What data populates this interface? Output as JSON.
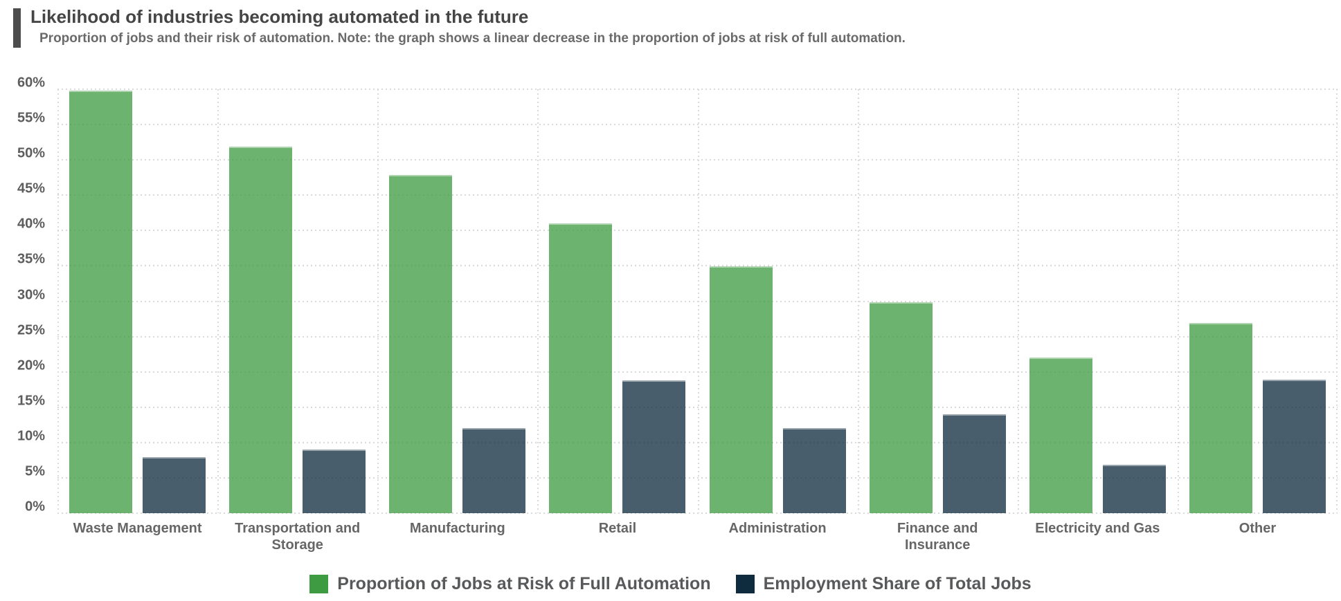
{
  "header": {
    "title": "Likelihood of industries becoming automated in the future",
    "subtitle": "Proportion of jobs and their risk of automation. Note: the graph shows a linear decrease in the proportion of jobs at risk of full automation."
  },
  "chart_data": {
    "type": "bar",
    "title": "Likelihood of industries becoming automated in the future",
    "subtitle": "Proportion of jobs and their risk of automation. Note: the graph shows a linear decrease in the proportion of jobs at risk of full automation.",
    "categories": [
      "Waste Management",
      "Transportation and\nStorage",
      "Manufacturing",
      "Retail",
      "Administration",
      "Finance and\nInsurance",
      "Electricity and Gas",
      "Other"
    ],
    "series": [
      {
        "name": "Proportion of Jobs at Risk of Full Automation",
        "legend_color": "#3e9b42",
        "bar_color": "rgba(62,155,66,0.76)",
        "values": [
          59.8,
          51.9,
          47.9,
          41.0,
          34.9,
          29.9,
          22.0,
          26.9
        ]
      },
      {
        "name": "Employment Share of Total Jobs",
        "legend_color": "#0e2c3e",
        "bar_color": "rgba(14,44,62,0.76)",
        "values": [
          7.9,
          9.0,
          12.0,
          18.8,
          12.0,
          14.0,
          6.9,
          18.9
        ]
      }
    ],
    "xlabel": "",
    "ylabel": "",
    "ylim": [
      0,
      60
    ],
    "ytick_step": 5,
    "ytick_suffix": "%",
    "grid": "dotted",
    "grid_color": "#d9d9d9",
    "legend_position": "bottom"
  }
}
